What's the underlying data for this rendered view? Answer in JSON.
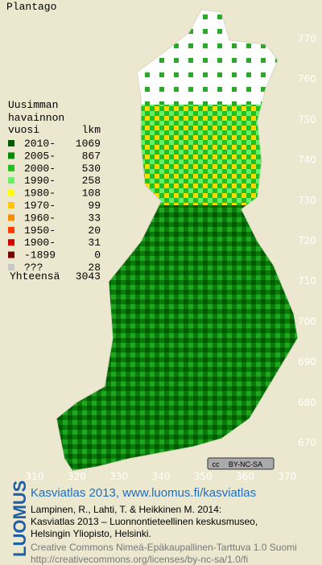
{
  "map": {
    "title": "Plantago",
    "legend_header": [
      "Uusimman",
      "havainnon"
    ],
    "legend_columns": [
      "vuosi",
      "lkm"
    ],
    "legend": [
      {
        "label": "2010-",
        "count": 1069,
        "color": "#005a00"
      },
      {
        "label": "2005-",
        "count": 867,
        "color": "#008c00"
      },
      {
        "label": "2000-",
        "count": 530,
        "color": "#1fc21f"
      },
      {
        "label": "1990-",
        "count": 258,
        "color": "#66f066"
      },
      {
        "label": "1980-",
        "count": 108,
        "color": "#ffff00"
      },
      {
        "label": "1970-",
        "count": 99,
        "color": "#ffc800"
      },
      {
        "label": "1960-",
        "count": 33,
        "color": "#ff8c00"
      },
      {
        "label": "1950-",
        "count": 20,
        "color": "#ff3c00"
      },
      {
        "label": "1900-",
        "count": 31,
        "color": "#d20000"
      },
      {
        "label": "-1899",
        "count": 0,
        "color": "#7a0000"
      },
      {
        "label": "???",
        "count": 28,
        "color": "#c8c8c8"
      }
    ],
    "total": {
      "label": "Yhteensä",
      "count": 3043
    },
    "yticks": [
      770,
      760,
      750,
      740,
      730,
      720,
      710,
      700,
      690,
      680,
      670
    ],
    "xticks": [
      310,
      320,
      330,
      340,
      350,
      360,
      370
    ],
    "badge": [
      "cc",
      "BY-NC-SA"
    ]
  },
  "footer": {
    "logo": "LUOMUS",
    "heading": "Kasviatlas 2013, www.luomus.fi/kasviatlas",
    "citation": [
      "Lampinen, R., Lahti, T. & Heikkinen M. 2014:",
      "Kasviatlas 2013 – Luonnontieteellinen keskusmuseo,",
      "Helsingin Yliopisto, Helsinki."
    ],
    "license": [
      "Creative Commons Nimeä-Epäkaupallinen-Tarttuva 1.0 Suomi",
      "http://creativecommons.org/licenses/by-nc-sa/1.0/fi"
    ]
  }
}
